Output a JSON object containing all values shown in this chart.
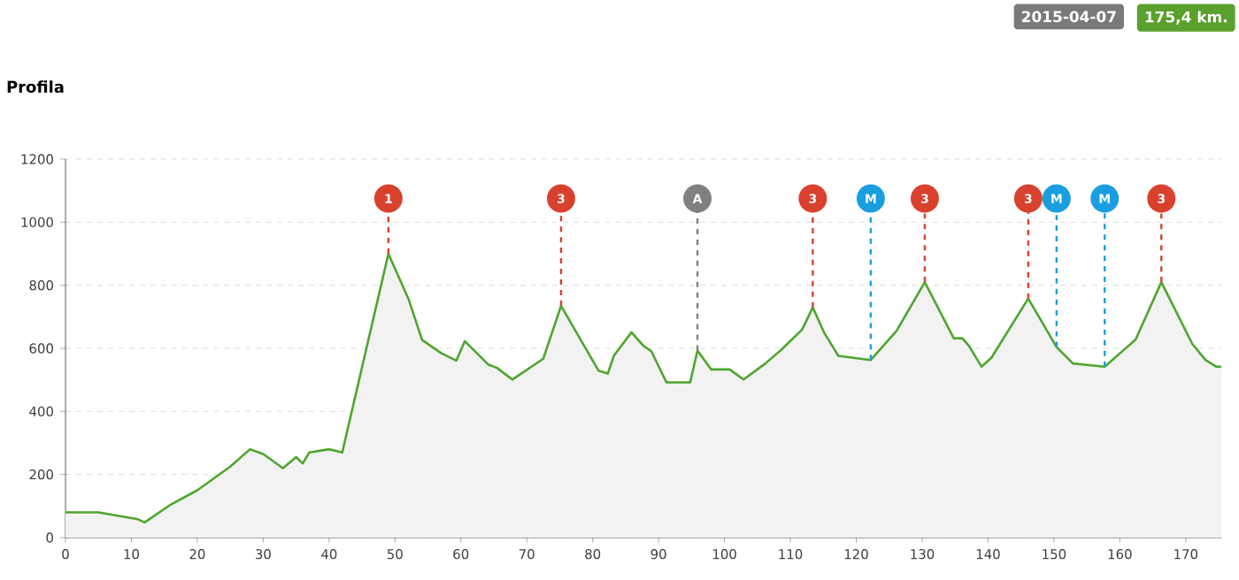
{
  "chart_data": {
    "type": "area",
    "title": "Profila",
    "annotations": [
      "2015-04-07",
      "175,4 km.",
      "1",
      "3",
      "A",
      "3",
      "M",
      "3",
      "3",
      "M",
      "M",
      "3"
    ],
    "x": [
      0,
      5,
      11,
      12,
      16,
      20,
      25,
      28,
      30,
      33,
      35,
      36,
      37,
      40,
      42,
      49,
      52.1,
      54.1,
      57,
      59.3,
      60.6,
      64.2,
      65.5,
      67.8,
      72.5,
      75.2,
      80.9,
      82.3,
      83.2,
      85.9,
      87.7,
      88.9,
      91.2,
      94.8,
      95.9,
      98,
      100.8,
      102.9,
      106.2,
      108.6,
      111.8,
      113.4,
      115.1,
      117.3,
      122.2,
      126.1,
      130.4,
      134.8,
      136.1,
      137.1,
      139,
      140.5,
      146.1,
      150.4,
      152.9,
      157.7,
      162.4,
      166.3,
      171,
      173,
      174.6,
      175.4
    ],
    "series": [
      {
        "color": "#4ea52f",
        "values": [
          80,
          80,
          58,
          48,
          105,
          150,
          225,
          280,
          265,
          220,
          255,
          235,
          270,
          280,
          270,
          900,
          754,
          627,
          585,
          561,
          623,
          548,
          538,
          501,
          567,
          735,
          529,
          520,
          576,
          651,
          608,
          591,
          492,
          492,
          593,
          533,
          533,
          501,
          552,
          595,
          660,
          730,
          651,
          576,
          563,
          655,
          810,
          632,
          632,
          608,
          542,
          570,
          758,
          604,
          552,
          542,
          628,
          810,
          614,
          563,
          542,
          542
        ]
      }
    ],
    "xlim": [
      0,
      175.4
    ],
    "ylim": [
      0,
      1200
    ],
    "xticks": [
      0,
      10,
      20,
      30,
      40,
      50,
      60,
      70,
      80,
      90,
      100,
      110,
      120,
      130,
      140,
      150,
      160,
      170
    ],
    "yticks": [
      0,
      200,
      400,
      600,
      800,
      1000,
      1200
    ],
    "grid": "y",
    "marker": "none",
    "line_style": "solid",
    "ref_lines": [
      {
        "axis": "x",
        "value": 49,
        "color": "#d9412f",
        "line_style": "dashed"
      },
      {
        "axis": "x",
        "value": 75.2,
        "color": "#d9412f",
        "line_style": "dashed"
      },
      {
        "axis": "x",
        "value": 95.9,
        "color": "#808080",
        "line_style": "dashed"
      },
      {
        "axis": "x",
        "value": 113.4,
        "color": "#d9412f",
        "line_style": "dashed"
      },
      {
        "axis": "x",
        "value": 122.2,
        "color": "#1a9ee0",
        "line_style": "dashed"
      },
      {
        "axis": "x",
        "value": 130.4,
        "color": "#d9412f",
        "line_style": "dashed"
      },
      {
        "axis": "x",
        "value": 146.1,
        "color": "#d9412f",
        "line_style": "dashed"
      },
      {
        "axis": "x",
        "value": 150.4,
        "color": "#1a9ee0",
        "line_style": "dashed"
      },
      {
        "axis": "x",
        "value": 157.7,
        "color": "#1a9ee0",
        "line_style": "dashed"
      },
      {
        "axis": "x",
        "value": 166.3,
        "color": "#d9412f",
        "line_style": "dashed"
      }
    ]
  }
}
